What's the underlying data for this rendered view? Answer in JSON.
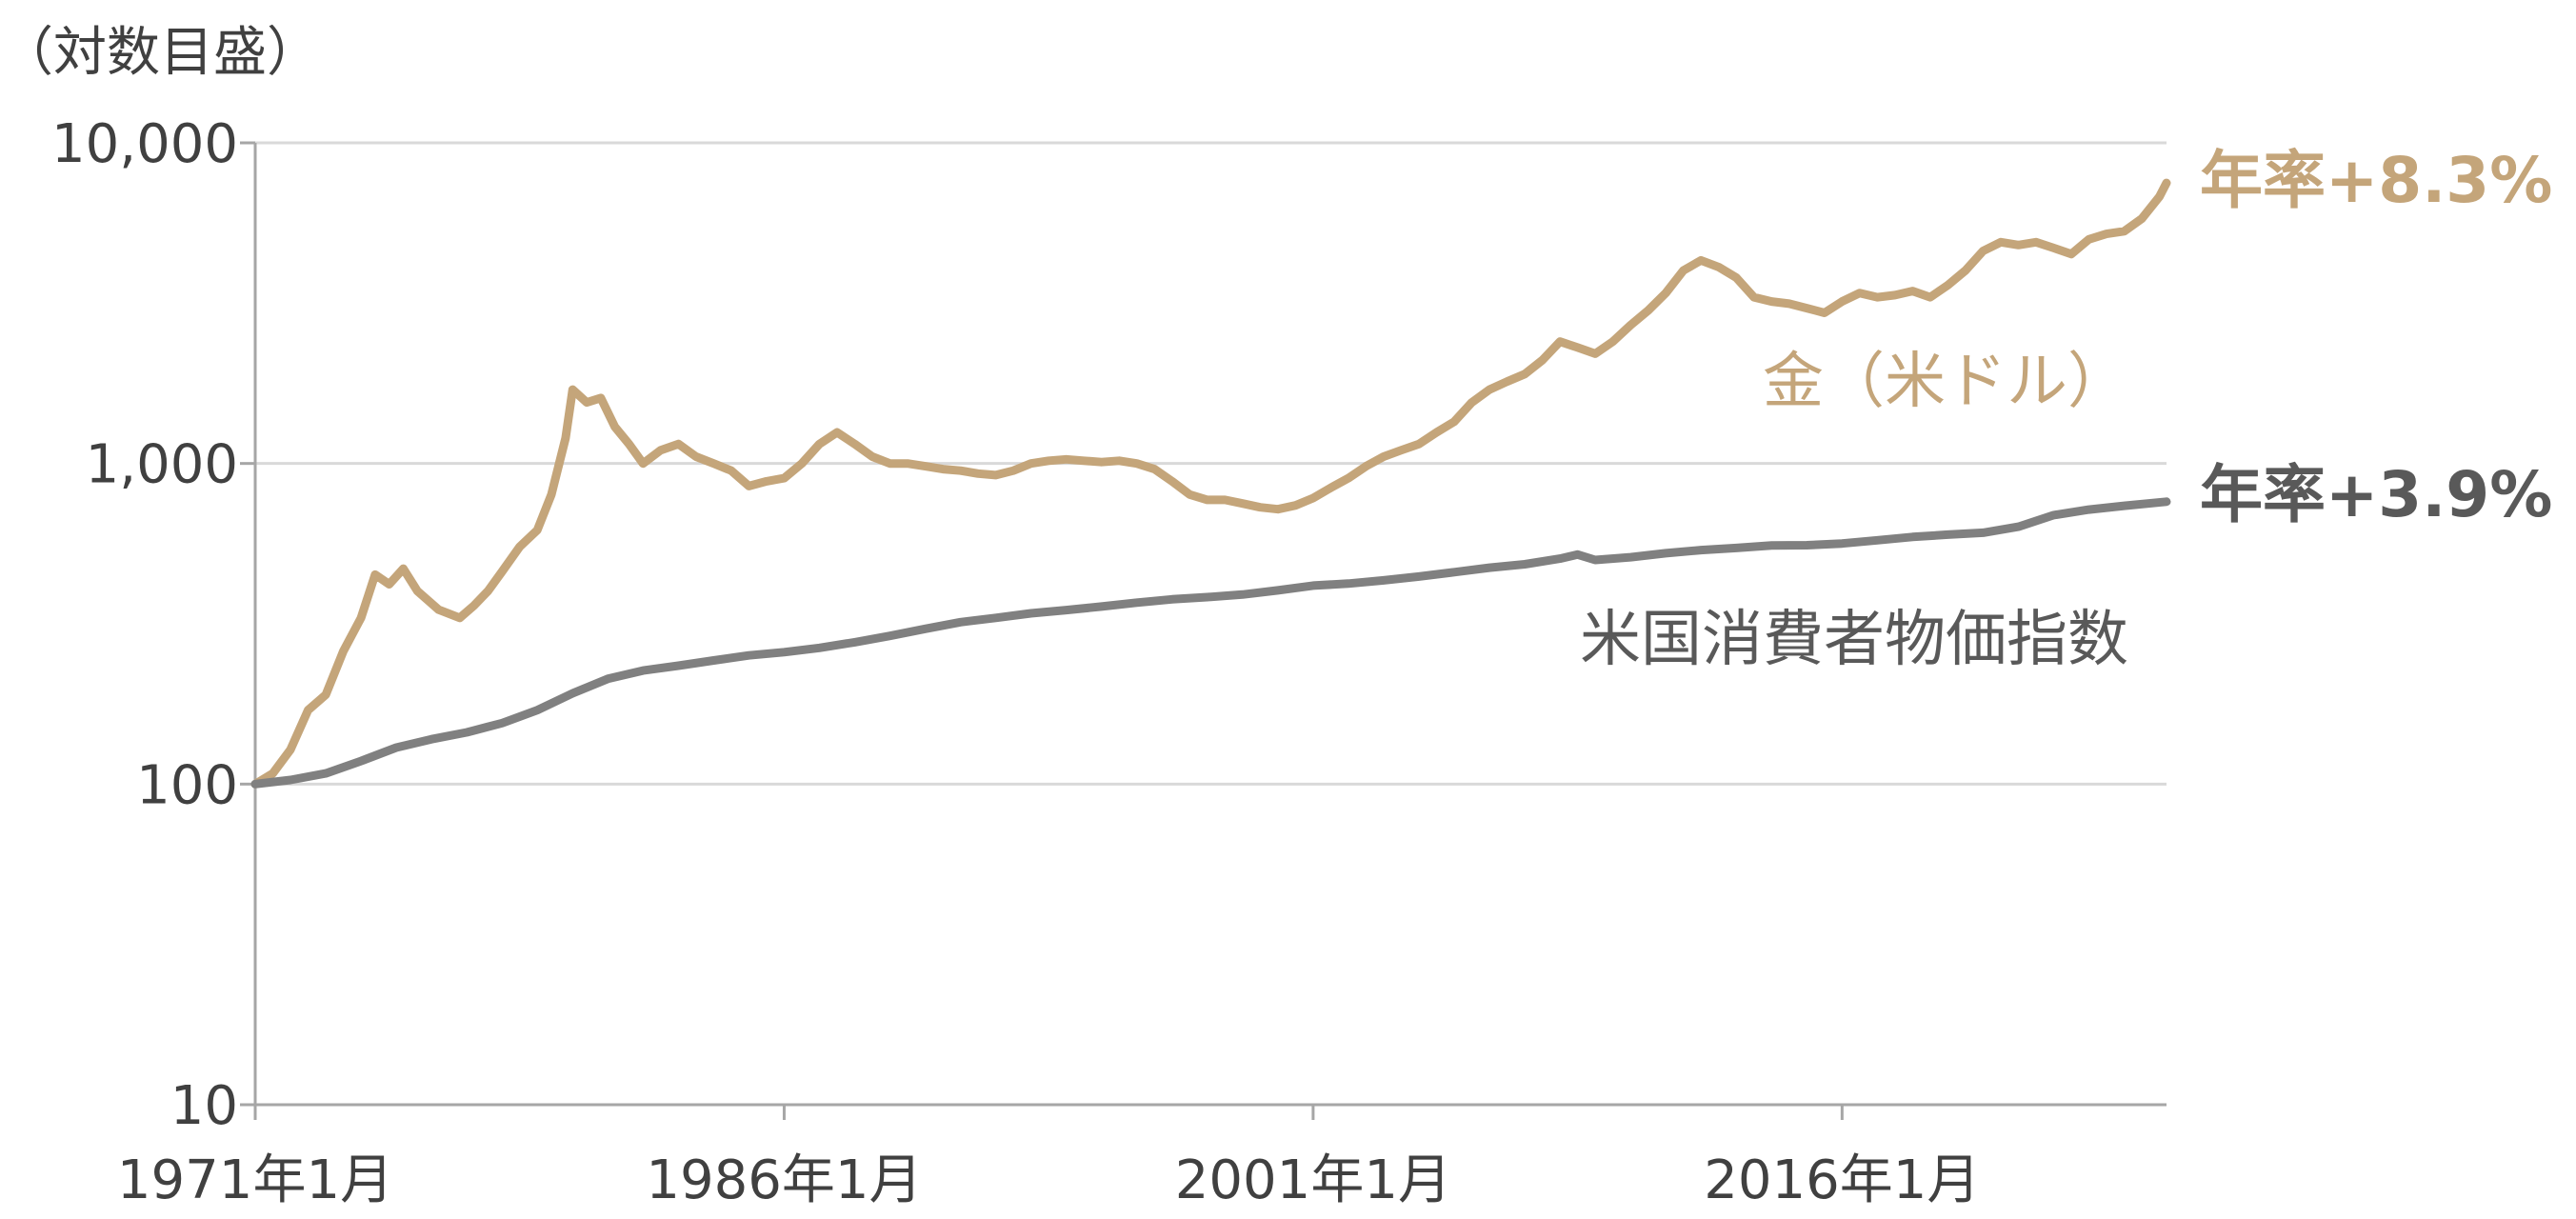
{
  "chart_data": {
    "type": "line",
    "unit_note": "（対数目盛）",
    "y_scale": "log",
    "ylim": [
      10,
      10000
    ],
    "y_ticks": [
      {
        "value": 10000,
        "label": "10,000"
      },
      {
        "value": 1000,
        "label": "1,000"
      },
      {
        "value": 100,
        "label": "100"
      },
      {
        "value": 10,
        "label": "10"
      }
    ],
    "xlim": [
      1971.0,
      2025.2
    ],
    "x_ticks": [
      {
        "value": 1971,
        "label": "1971年1月"
      },
      {
        "value": 1986,
        "label": "1986年1月"
      },
      {
        "value": 2001,
        "label": "2001年1月"
      },
      {
        "value": 2016,
        "label": "2016年1月"
      }
    ],
    "grid": true,
    "series": [
      {
        "name": "金（米ドル）",
        "rate_label": "年率+8.3%",
        "color": "#c4a57a",
        "x": [
          1971.0,
          1971.5,
          1972.0,
          1972.5,
          1973.0,
          1973.5,
          1974.0,
          1974.4,
          1974.8,
          1975.2,
          1975.6,
          1976.2,
          1976.8,
          1977.2,
          1977.6,
          1978.0,
          1978.5,
          1979.0,
          1979.4,
          1979.8,
          1980.0,
          1980.4,
          1980.8,
          1981.2,
          1981.6,
          1982.0,
          1982.5,
          1983.0,
          1983.5,
          1984.0,
          1984.5,
          1985.0,
          1985.5,
          1986.0,
          1986.5,
          1987.0,
          1987.5,
          1988.0,
          1988.5,
          1989.0,
          1989.5,
          1990.0,
          1990.5,
          1991.0,
          1991.5,
          1992.0,
          1992.5,
          1993.0,
          1993.5,
          1994.0,
          1994.5,
          1995.0,
          1995.5,
          1996.0,
          1996.5,
          1997.0,
          1997.5,
          1998.0,
          1998.5,
          1999.0,
          1999.5,
          2000.0,
          2000.5,
          2001.0,
          2001.5,
          2002.0,
          2002.5,
          2003.0,
          2003.5,
          2004.0,
          2004.5,
          2005.0,
          2005.5,
          2006.0,
          2006.5,
          2007.0,
          2007.5,
          2008.0,
          2008.5,
          2009.0,
          2009.5,
          2010.0,
          2010.5,
          2011.0,
          2011.5,
          2012.0,
          2012.5,
          2013.0,
          2013.5,
          2014.0,
          2014.5,
          2015.0,
          2015.5,
          2016.0,
          2016.5,
          2017.0,
          2017.5,
          2018.0,
          2018.5,
          2019.0,
          2019.5,
          2020.0,
          2020.5,
          2021.0,
          2021.5,
          2022.0,
          2022.5,
          2023.0,
          2023.5,
          2024.0,
          2024.5,
          2025.0,
          2025.2
        ],
        "values": [
          100,
          108,
          128,
          170,
          190,
          260,
          330,
          450,
          420,
          470,
          400,
          350,
          330,
          360,
          400,
          460,
          550,
          620,
          800,
          1200,
          1700,
          1550,
          1600,
          1300,
          1150,
          1000,
          1100,
          1150,
          1050,
          1000,
          950,
          850,
          880,
          900,
          1000,
          1150,
          1250,
          1150,
          1050,
          1000,
          1000,
          980,
          960,
          950,
          930,
          920,
          950,
          1000,
          1020,
          1030,
          1020,
          1010,
          1020,
          1000,
          960,
          880,
          800,
          770,
          770,
          750,
          730,
          720,
          740,
          780,
          840,
          900,
          980,
          1050,
          1100,
          1150,
          1250,
          1350,
          1550,
          1700,
          1800,
          1900,
          2100,
          2400,
          2300,
          2200,
          2400,
          2700,
          3000,
          3400,
          4000,
          4300,
          4100,
          3800,
          3300,
          3200,
          3150,
          3050,
          2950,
          3200,
          3400,
          3300,
          3350,
          3450,
          3300,
          3600,
          4000,
          4600,
          4900,
          4800,
          4900,
          4700,
          4500,
          5000,
          5200,
          5300,
          5800,
          6800,
          7500
        ]
      },
      {
        "name": "米国消費者物価指数",
        "rate_label": "年率+3.9%",
        "color": "#808080",
        "x": [
          1971.0,
          1972.0,
          1973.0,
          1974.0,
          1975.0,
          1976.0,
          1977.0,
          1978.0,
          1979.0,
          1980.0,
          1981.0,
          1982.0,
          1983.0,
          1984.0,
          1985.0,
          1986.0,
          1987.0,
          1988.0,
          1989.0,
          1990.0,
          1991.0,
          1992.0,
          1993.0,
          1994.0,
          1995.0,
          1996.0,
          1997.0,
          1998.0,
          1999.0,
          2000.0,
          2001.0,
          2002.0,
          2003.0,
          2004.0,
          2005.0,
          2006.0,
          2007.0,
          2008.0,
          2008.5,
          2009.0,
          2010.0,
          2011.0,
          2012.0,
          2013.0,
          2014.0,
          2015.0,
          2016.0,
          2017.0,
          2018.0,
          2019.0,
          2020.0,
          2021.0,
          2022.0,
          2023.0,
          2024.0,
          2025.2
        ],
        "values": [
          100,
          103,
          108,
          118,
          130,
          138,
          145,
          155,
          170,
          192,
          213,
          226,
          234,
          243,
          252,
          258,
          266,
          277,
          290,
          305,
          320,
          330,
          341,
          349,
          358,
          368,
          377,
          383,
          390,
          402,
          416,
          422,
          432,
          444,
          458,
          473,
          485,
          505,
          520,
          500,
          510,
          525,
          537,
          545,
          555,
          556,
          563,
          576,
          590,
          600,
          608,
          635,
          690,
          718,
          738,
          760
        ]
      }
    ]
  }
}
